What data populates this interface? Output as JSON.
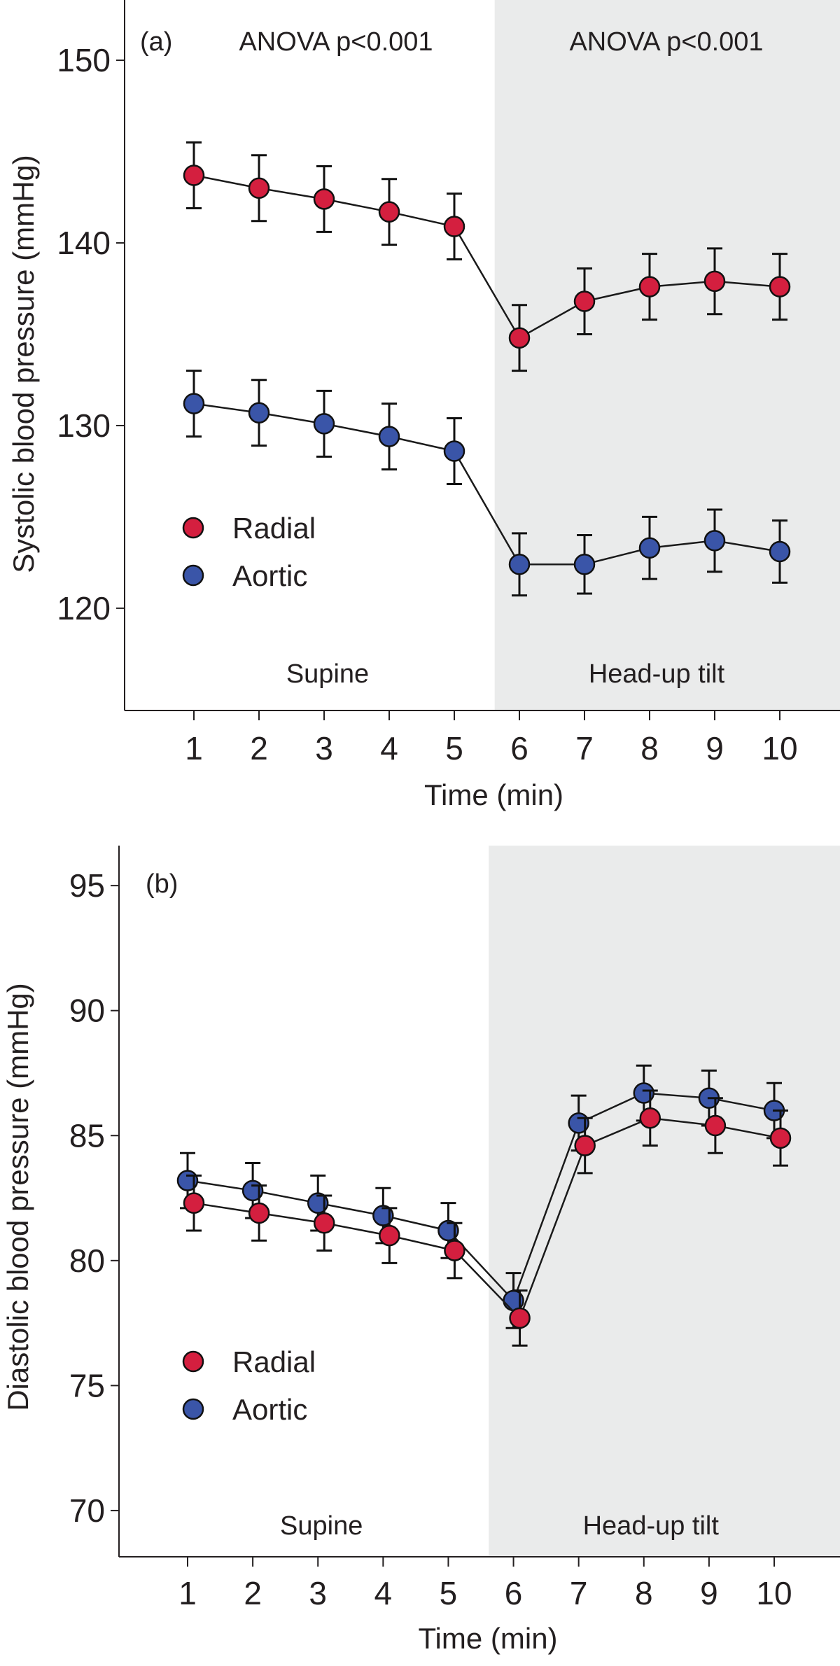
{
  "colors": {
    "radial": "#d41f3f",
    "aortic": "#3a55a8",
    "shade": "#eaebeb",
    "line": "#1a1a1a"
  },
  "chart_data": [
    {
      "type": "line",
      "panel_label": "(a)",
      "annotations": {
        "left": "ANOVA p<0.001",
        "right": "ANOVA p<0.001",
        "phase_left": "Supine",
        "phase_right": "Head-up tilt"
      },
      "xlabel": "Time (min)",
      "ylabel": "Systolic blood pressure (mmHg)",
      "x": [
        1,
        2,
        3,
        4,
        5,
        6,
        7,
        8,
        9,
        10
      ],
      "xticks": [
        "1",
        "2",
        "3",
        "4",
        "5",
        "6",
        "7",
        "8",
        "9",
        "10"
      ],
      "yticks": [
        120,
        130,
        140,
        150
      ],
      "ylim": [
        114.4,
        153.3
      ],
      "xlim": [
        0,
        10.9
      ],
      "shaded_from_x": 5.62,
      "legend_position": "left",
      "series": [
        {
          "name": "Radial",
          "color_key": "radial",
          "values": [
            143.7,
            143.0,
            142.4,
            141.7,
            140.9,
            134.8,
            136.8,
            137.6,
            137.9,
            137.6
          ],
          "error": [
            1.8,
            1.8,
            1.8,
            1.8,
            1.8,
            1.8,
            1.8,
            1.8,
            1.8,
            1.8
          ]
        },
        {
          "name": "Aortic",
          "color_key": "aortic",
          "values": [
            131.2,
            130.7,
            130.1,
            129.4,
            128.6,
            122.4,
            122.4,
            123.3,
            123.7,
            123.1
          ],
          "error": [
            1.8,
            1.8,
            1.8,
            1.8,
            1.8,
            1.7,
            1.6,
            1.7,
            1.7,
            1.7
          ]
        }
      ]
    },
    {
      "type": "line",
      "panel_label": "(b)",
      "annotations": {
        "phase_left": "Supine",
        "phase_right": "Head-up tilt"
      },
      "xlabel": "Time (min)",
      "ylabel": "Diastolic blood pressure (mmHg)",
      "x": [
        1,
        2,
        3,
        4,
        5,
        6,
        7,
        8,
        9,
        10
      ],
      "xticks": [
        "1",
        "2",
        "3",
        "4",
        "5",
        "6",
        "7",
        "8",
        "9",
        "10"
      ],
      "yticks": [
        70,
        75,
        80,
        85,
        90,
        95
      ],
      "ylim": [
        68.15,
        96.6
      ],
      "xlim": [
        0,
        10.9
      ],
      "shaded_from_x": 5.62,
      "legend_position": "left",
      "series": [
        {
          "name": "Radial",
          "color_key": "radial",
          "values": [
            82.3,
            81.9,
            81.5,
            81.0,
            80.4,
            77.7,
            84.6,
            85.7,
            85.4,
            84.9
          ],
          "error": [
            1.1,
            1.1,
            1.1,
            1.1,
            1.1,
            1.1,
            1.1,
            1.1,
            1.1,
            1.1
          ]
        },
        {
          "name": "Aortic",
          "color_key": "aortic",
          "values": [
            83.2,
            82.8,
            82.3,
            81.8,
            81.2,
            78.4,
            85.5,
            86.7,
            86.5,
            86.0
          ],
          "error": [
            1.1,
            1.1,
            1.1,
            1.1,
            1.1,
            1.1,
            1.1,
            1.1,
            1.1,
            1.1
          ]
        }
      ]
    }
  ]
}
